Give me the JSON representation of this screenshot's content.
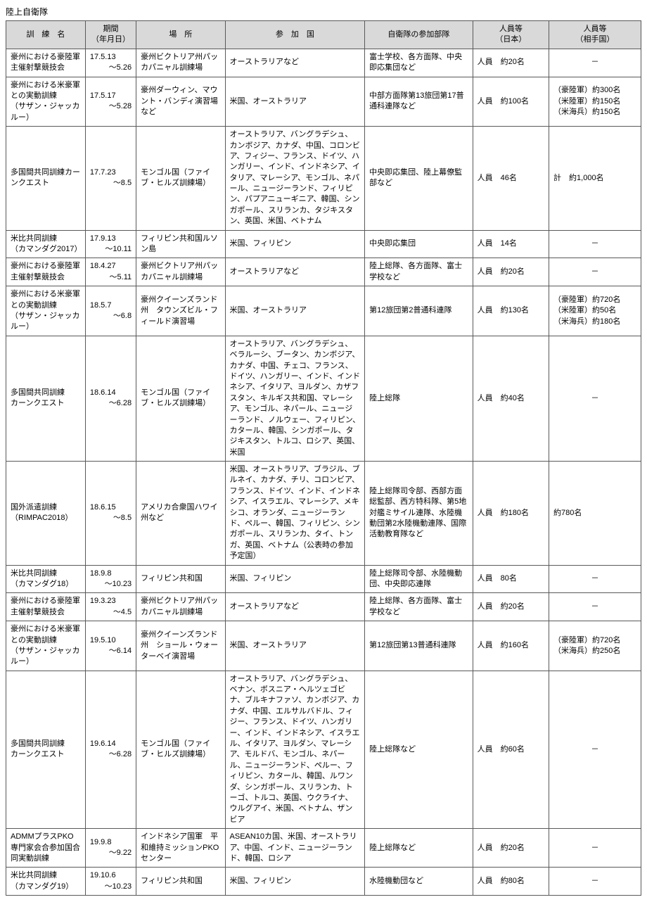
{
  "title": "陸上自衛隊",
  "headers": {
    "name": "訓　練　名",
    "period": "期間\n（年月日）",
    "place": "場　所",
    "countries": "参　加　国",
    "units": "自衛隊の参加部隊",
    "personnel_jp": "人員等\n（日本）",
    "personnel_other": "人員等\n（相手国）"
  },
  "rows": [
    {
      "name": "豪州における豪陸軍主催射撃競技会",
      "period_from": "17.5.13",
      "period_to": "～5.26",
      "place": "豪州ビクトリア州パッカパニャル訓練場",
      "countries": "オーストラリアなど",
      "units": "富士学校、各方面隊、中央即応集団など",
      "pers_jp": "人員　約20名",
      "pers_other": "－"
    },
    {
      "name": "豪州における米豪軍との実動訓練\n（サザン・ジャッカルー）",
      "period_from": "17.5.17",
      "period_to": "～5.28",
      "place": "豪州ダーウィン、マウント・バンディ演習場など",
      "countries": "米国、オーストラリア",
      "units": "中部方面隊第13旅団第17普通科連隊など",
      "pers_jp": "人員　約100名",
      "pers_other": "（豪陸軍）約300名\n（米陸軍）約150名\n（米海兵）約150名"
    },
    {
      "name": "多国間共同訓練カーンクエスト",
      "period_from": "17.7.23",
      "period_to": "～8.5",
      "place": "モンゴル国（ファイブ・ヒルズ訓練場）",
      "countries": "オーストラリア、バングラデシュ、カンボジア、カナダ、中国、コロンビア、フィジー、フランス、ドイツ、ハンガリー、インド、インドネシア、イタリア、マレーシア、モンゴル、ネパール、ニュージーランド、フィリピン、パプアニューギニア、韓国、シンガポール、スリランカ、タジキスタン、英国、米国、ベトナム",
      "units": "中央即応集団、陸上幕僚監部など",
      "pers_jp": "人員　46名",
      "pers_other": "計　約1,000名"
    },
    {
      "name": "米比共同訓練\n（カマンダグ2017）",
      "period_from": "17.9.13",
      "period_to": "～10.11",
      "place": "フィリピン共和国ルソン島",
      "countries": "米国、フィリピン",
      "units": "中央即応集団",
      "pers_jp": "人員　14名",
      "pers_other": "－"
    },
    {
      "name": "豪州における豪陸軍主催射撃競技会",
      "period_from": "18.4.27",
      "period_to": "～5.11",
      "place": "豪州ビクトリア州パッカパニャル訓練場",
      "countries": "オーストラリアなど",
      "units": "陸上総隊、各方面隊、富士学校など",
      "pers_jp": "人員　約20名",
      "pers_other": "－"
    },
    {
      "name": "豪州における米豪軍との実動訓練\n（サザン・ジャッカルー）",
      "period_from": "18.5.7",
      "period_to": "～6.8",
      "place": "豪州クイーンズランド州　タウンズビル・フィールド演習場",
      "countries": "米国、オーストラリア",
      "units": "第12旅団第2普通科連隊",
      "pers_jp": "人員　約130名",
      "pers_other": "（豪陸軍）約720名\n（米陸軍）約50名\n（米海兵）約180名"
    },
    {
      "name": "多国間共同訓練\nカーンクエスト",
      "period_from": "18.6.14",
      "period_to": "～6.28",
      "place": "モンゴル国（ファイブ・ヒルズ訓練場）",
      "countries": "オーストラリア、バングラデシュ、ベラルーシ、ブータン、カンボジア、カナダ、中国、チェコ、フランス、ドイツ、ハンガリー、インド、インドネシア、イタリア、ヨルダン、カザフスタン、キルギス共和国、マレーシア、モンゴル、ネパール、ニュージーランド、ノルウェー、フィリピン、カタール、韓国、シンガポール、タジキスタン、トルコ、ロシア、英国、米国",
      "units": "陸上総隊",
      "pers_jp": "人員　約40名",
      "pers_other": "－"
    },
    {
      "name": "国外派遣訓練\n（RIMPAC2018）",
      "period_from": "18.6.15",
      "period_to": "～8.5",
      "place": "アメリカ合衆国ハワイ州など",
      "countries": "米国、オーストラリア、ブラジル、ブルネイ、カナダ、チリ、コロンビア、フランス、ドイツ、インド、インドネシア、イスラエル、マレーシア、メキシコ、オランダ、ニュージーランド、ペルー、韓国、フィリピン、シンガポール、スリランカ、タイ、トンガ、英国、ベトナム（公表時の参加予定国）",
      "units": "陸上総隊司令部、西部方面総監部、西方特科隊、第5地対艦ミサイル連隊、水陸機動団第2水陸機動連隊、国際活動教育隊など",
      "pers_jp": "人員　約180名",
      "pers_other": "約780名"
    },
    {
      "name": "米比共同訓練\n（カマンダグ18）",
      "period_from": "18.9.8",
      "period_to": "～10.23",
      "place": "フィリピン共和国",
      "countries": "米国、フィリピン",
      "units": "陸上総隊司令部、水陸機動団、中央即応連隊",
      "pers_jp": "人員　80名",
      "pers_other": "－"
    },
    {
      "name": "豪州における豪陸軍主催射撃競技会",
      "period_from": "19.3.23",
      "period_to": "～4.5",
      "place": "豪州ビクトリア州パッカパニャル訓練場",
      "countries": "オーストラリアなど",
      "units": "陸上総隊、各方面隊、富士学校など",
      "pers_jp": "人員　約20名",
      "pers_other": "－"
    },
    {
      "name": "豪州における米豪軍との実動訓練\n（サザン・ジャッカルー）",
      "period_from": "19.5.10",
      "period_to": "～6.14",
      "place": "豪州クイーンズランド州　ショール・ウォーターベイ演習場",
      "countries": "米国、オーストラリア",
      "units": "第12旅団第13普通科連隊",
      "pers_jp": "人員　約160名",
      "pers_other": "（豪陸軍）約720名\n（米海兵）約250名"
    },
    {
      "name": "多国間共同訓練\nカーンクエスト",
      "period_from": "19.6.14",
      "period_to": "～6.28",
      "place": "モンゴル国（ファイブ・ヒルズ訓練場）",
      "countries": "オーストラリア、バングラデシュ、ベナン、ボスニア・ヘルツェゴビナ、ブルキナファソ、カンボジア、カナダ、中国、エルサルバドル、フィジー、フランス、ドイツ、ハンガリー、インド、インドネシア、イスラエル、イタリア、ヨルダン、マレーシア、モルドバ、モンゴル、ネパール、ニュージーランド、ペルー、フィリピン、カタール、韓国、ルワンダ、シンガポール、スリランカ、トーゴ、トルコ、英国、ウクライナ、ウルグアイ、米国、ベトナム、ザンビア",
      "units": "陸上総隊など",
      "pers_jp": "人員　約60名",
      "pers_other": "－"
    },
    {
      "name": "ADMMプラスPKO専門家会合参加国合同実動訓練",
      "period_from": "19.9.8",
      "period_to": "～9.22",
      "place": "インドネシア国軍　平和維持ミッションPKOセンター",
      "countries": "ASEAN10カ国、米国、オーストラリア、中国、インド、ニュージーランド、韓国、ロシア",
      "units": "陸上総隊など",
      "pers_jp": "人員　約20名",
      "pers_other": "－"
    },
    {
      "name": "米比共同訓練\n（カマンダグ19）",
      "period_from": "19.10.6",
      "period_to": "～10.23",
      "place": "フィリピン共和国",
      "countries": "米国、フィリピン",
      "units": "水陸機動団など",
      "pers_jp": "人員　約80名",
      "pers_other": "－"
    }
  ]
}
